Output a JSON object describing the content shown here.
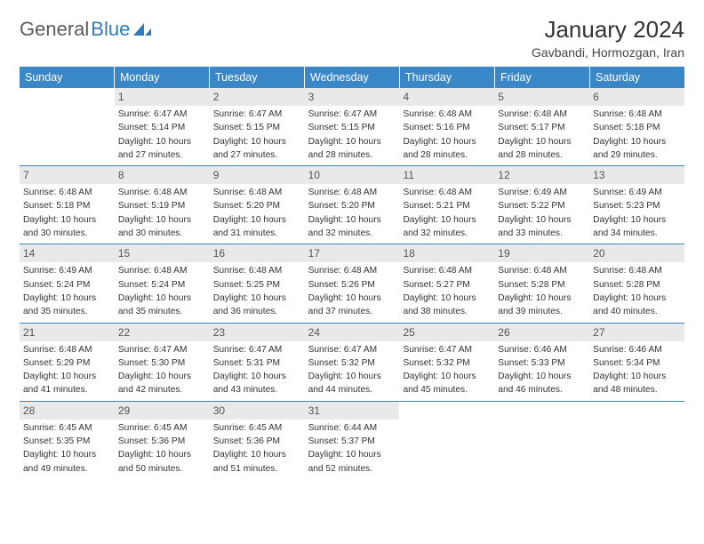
{
  "logo": {
    "text1": "General",
    "text2": "Blue"
  },
  "title": "January 2024",
  "location": "Gavbandi, Hormozgan, Iran",
  "colors": {
    "header_bg": "#3a87c7",
    "header_text": "#ffffff",
    "daynum_bg": "#e9e9e9",
    "daynum_text": "#555555",
    "body_text": "#333333",
    "logo_gray": "#5a5a5a",
    "logo_blue": "#2b7dbf",
    "rule": "#3a87c7"
  },
  "day_labels": [
    "Sunday",
    "Monday",
    "Tuesday",
    "Wednesday",
    "Thursday",
    "Friday",
    "Saturday"
  ],
  "weeks": [
    [
      {
        "n": "",
        "sunrise": "",
        "sunset": "",
        "daylight": ""
      },
      {
        "n": "1",
        "sunrise": "Sunrise: 6:47 AM",
        "sunset": "Sunset: 5:14 PM",
        "daylight": "Daylight: 10 hours and 27 minutes."
      },
      {
        "n": "2",
        "sunrise": "Sunrise: 6:47 AM",
        "sunset": "Sunset: 5:15 PM",
        "daylight": "Daylight: 10 hours and 27 minutes."
      },
      {
        "n": "3",
        "sunrise": "Sunrise: 6:47 AM",
        "sunset": "Sunset: 5:15 PM",
        "daylight": "Daylight: 10 hours and 28 minutes."
      },
      {
        "n": "4",
        "sunrise": "Sunrise: 6:48 AM",
        "sunset": "Sunset: 5:16 PM",
        "daylight": "Daylight: 10 hours and 28 minutes."
      },
      {
        "n": "5",
        "sunrise": "Sunrise: 6:48 AM",
        "sunset": "Sunset: 5:17 PM",
        "daylight": "Daylight: 10 hours and 28 minutes."
      },
      {
        "n": "6",
        "sunrise": "Sunrise: 6:48 AM",
        "sunset": "Sunset: 5:18 PM",
        "daylight": "Daylight: 10 hours and 29 minutes."
      }
    ],
    [
      {
        "n": "7",
        "sunrise": "Sunrise: 6:48 AM",
        "sunset": "Sunset: 5:18 PM",
        "daylight": "Daylight: 10 hours and 30 minutes."
      },
      {
        "n": "8",
        "sunrise": "Sunrise: 6:48 AM",
        "sunset": "Sunset: 5:19 PM",
        "daylight": "Daylight: 10 hours and 30 minutes."
      },
      {
        "n": "9",
        "sunrise": "Sunrise: 6:48 AM",
        "sunset": "Sunset: 5:20 PM",
        "daylight": "Daylight: 10 hours and 31 minutes."
      },
      {
        "n": "10",
        "sunrise": "Sunrise: 6:48 AM",
        "sunset": "Sunset: 5:20 PM",
        "daylight": "Daylight: 10 hours and 32 minutes."
      },
      {
        "n": "11",
        "sunrise": "Sunrise: 6:48 AM",
        "sunset": "Sunset: 5:21 PM",
        "daylight": "Daylight: 10 hours and 32 minutes."
      },
      {
        "n": "12",
        "sunrise": "Sunrise: 6:49 AM",
        "sunset": "Sunset: 5:22 PM",
        "daylight": "Daylight: 10 hours and 33 minutes."
      },
      {
        "n": "13",
        "sunrise": "Sunrise: 6:49 AM",
        "sunset": "Sunset: 5:23 PM",
        "daylight": "Daylight: 10 hours and 34 minutes."
      }
    ],
    [
      {
        "n": "14",
        "sunrise": "Sunrise: 6:49 AM",
        "sunset": "Sunset: 5:24 PM",
        "daylight": "Daylight: 10 hours and 35 minutes."
      },
      {
        "n": "15",
        "sunrise": "Sunrise: 6:48 AM",
        "sunset": "Sunset: 5:24 PM",
        "daylight": "Daylight: 10 hours and 35 minutes."
      },
      {
        "n": "16",
        "sunrise": "Sunrise: 6:48 AM",
        "sunset": "Sunset: 5:25 PM",
        "daylight": "Daylight: 10 hours and 36 minutes."
      },
      {
        "n": "17",
        "sunrise": "Sunrise: 6:48 AM",
        "sunset": "Sunset: 5:26 PM",
        "daylight": "Daylight: 10 hours and 37 minutes."
      },
      {
        "n": "18",
        "sunrise": "Sunrise: 6:48 AM",
        "sunset": "Sunset: 5:27 PM",
        "daylight": "Daylight: 10 hours and 38 minutes."
      },
      {
        "n": "19",
        "sunrise": "Sunrise: 6:48 AM",
        "sunset": "Sunset: 5:28 PM",
        "daylight": "Daylight: 10 hours and 39 minutes."
      },
      {
        "n": "20",
        "sunrise": "Sunrise: 6:48 AM",
        "sunset": "Sunset: 5:28 PM",
        "daylight": "Daylight: 10 hours and 40 minutes."
      }
    ],
    [
      {
        "n": "21",
        "sunrise": "Sunrise: 6:48 AM",
        "sunset": "Sunset: 5:29 PM",
        "daylight": "Daylight: 10 hours and 41 minutes."
      },
      {
        "n": "22",
        "sunrise": "Sunrise: 6:47 AM",
        "sunset": "Sunset: 5:30 PM",
        "daylight": "Daylight: 10 hours and 42 minutes."
      },
      {
        "n": "23",
        "sunrise": "Sunrise: 6:47 AM",
        "sunset": "Sunset: 5:31 PM",
        "daylight": "Daylight: 10 hours and 43 minutes."
      },
      {
        "n": "24",
        "sunrise": "Sunrise: 6:47 AM",
        "sunset": "Sunset: 5:32 PM",
        "daylight": "Daylight: 10 hours and 44 minutes."
      },
      {
        "n": "25",
        "sunrise": "Sunrise: 6:47 AM",
        "sunset": "Sunset: 5:32 PM",
        "daylight": "Daylight: 10 hours and 45 minutes."
      },
      {
        "n": "26",
        "sunrise": "Sunrise: 6:46 AM",
        "sunset": "Sunset: 5:33 PM",
        "daylight": "Daylight: 10 hours and 46 minutes."
      },
      {
        "n": "27",
        "sunrise": "Sunrise: 6:46 AM",
        "sunset": "Sunset: 5:34 PM",
        "daylight": "Daylight: 10 hours and 48 minutes."
      }
    ],
    [
      {
        "n": "28",
        "sunrise": "Sunrise: 6:45 AM",
        "sunset": "Sunset: 5:35 PM",
        "daylight": "Daylight: 10 hours and 49 minutes."
      },
      {
        "n": "29",
        "sunrise": "Sunrise: 6:45 AM",
        "sunset": "Sunset: 5:36 PM",
        "daylight": "Daylight: 10 hours and 50 minutes."
      },
      {
        "n": "30",
        "sunrise": "Sunrise: 6:45 AM",
        "sunset": "Sunset: 5:36 PM",
        "daylight": "Daylight: 10 hours and 51 minutes."
      },
      {
        "n": "31",
        "sunrise": "Sunrise: 6:44 AM",
        "sunset": "Sunset: 5:37 PM",
        "daylight": "Daylight: 10 hours and 52 minutes."
      },
      {
        "n": "",
        "sunrise": "",
        "sunset": "",
        "daylight": ""
      },
      {
        "n": "",
        "sunrise": "",
        "sunset": "",
        "daylight": ""
      },
      {
        "n": "",
        "sunrise": "",
        "sunset": "",
        "daylight": ""
      }
    ]
  ]
}
